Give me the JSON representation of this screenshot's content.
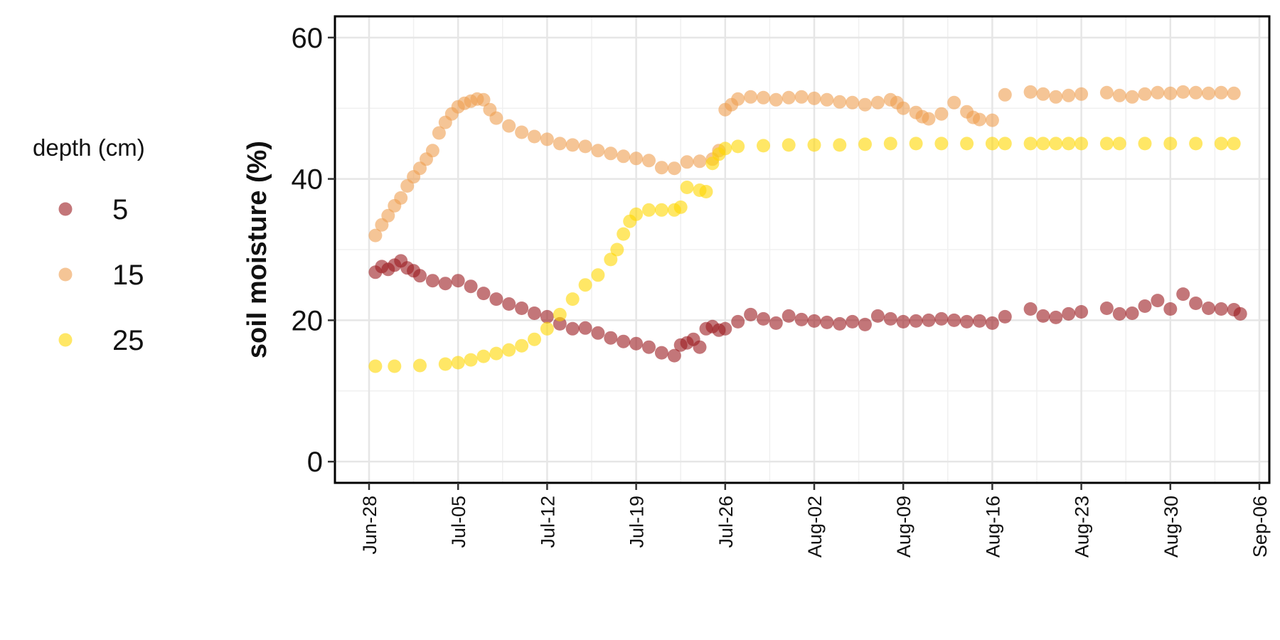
{
  "chart_data": {
    "type": "scatter",
    "title": "",
    "xlabel": "",
    "ylabel": "soil moisture (%)",
    "x_axis": {
      "type": "date",
      "range": [
        "2024-06-28",
        "2024-09-06"
      ],
      "ticks": [
        "2024-06-28",
        "2024-07-05",
        "2024-07-12",
        "2024-07-19",
        "2024-07-26",
        "2024-08-02",
        "2024-08-09",
        "2024-08-16",
        "2024-08-23",
        "2024-08-30",
        "2024-09-06"
      ],
      "tick_labels": [
        "Jun-28",
        "Jul-05",
        "Jul-12",
        "Jul-19",
        "Jul-26",
        "Aug-02",
        "Aug-09",
        "Aug-16",
        "Aug-23",
        "Aug-30",
        "Sep-06"
      ]
    },
    "y_axis": {
      "range": [
        -3,
        63
      ],
      "ticks": [
        0,
        20,
        40,
        60
      ],
      "tick_labels": [
        "0",
        "20",
        "40",
        "60"
      ]
    },
    "grid": true,
    "legend": {
      "title": "depth (cm)",
      "placement": "left"
    },
    "series": [
      {
        "name": "5",
        "color": "#9B1B20",
        "points": [
          [
            "2024-06-28T12:00",
            26.8
          ],
          [
            "2024-06-29T00:00",
            27.6
          ],
          [
            "2024-06-29T12:00",
            27.2
          ],
          [
            "2024-06-30T00:00",
            27.8
          ],
          [
            "2024-06-30T12:00",
            28.4
          ],
          [
            "2024-07-01T00:00",
            27.4
          ],
          [
            "2024-07-01T12:00",
            27.0
          ],
          [
            "2024-07-02T00:00",
            26.3
          ],
          [
            "2024-07-03T00:00",
            25.6
          ],
          [
            "2024-07-04T00:00",
            25.2
          ],
          [
            "2024-07-05T00:00",
            25.6
          ],
          [
            "2024-07-06T00:00",
            24.8
          ],
          [
            "2024-07-07T00:00",
            23.8
          ],
          [
            "2024-07-08T00:00",
            23.0
          ],
          [
            "2024-07-09T00:00",
            22.3
          ],
          [
            "2024-07-10T00:00",
            21.7
          ],
          [
            "2024-07-11T00:00",
            21.0
          ],
          [
            "2024-07-12T00:00",
            20.5
          ],
          [
            "2024-07-13T00:00",
            19.5
          ],
          [
            "2024-07-14T00:00",
            18.8
          ],
          [
            "2024-07-15T00:00",
            18.9
          ],
          [
            "2024-07-16T00:00",
            18.2
          ],
          [
            "2024-07-17T00:00",
            17.5
          ],
          [
            "2024-07-18T00:00",
            17.0
          ],
          [
            "2024-07-19T00:00",
            16.7
          ],
          [
            "2024-07-20T00:00",
            16.2
          ],
          [
            "2024-07-21T00:00",
            15.4
          ],
          [
            "2024-07-22T00:00",
            15.0
          ],
          [
            "2024-07-22T12:00",
            16.5
          ],
          [
            "2024-07-23T00:00",
            16.8
          ],
          [
            "2024-07-23T12:00",
            17.3
          ],
          [
            "2024-07-24T00:00",
            16.2
          ],
          [
            "2024-07-24T12:00",
            18.8
          ],
          [
            "2024-07-25T00:00",
            19.1
          ],
          [
            "2024-07-25T12:00",
            18.6
          ],
          [
            "2024-07-26T00:00",
            18.8
          ],
          [
            "2024-07-27T00:00",
            19.8
          ],
          [
            "2024-07-28T00:00",
            20.8
          ],
          [
            "2024-07-29T00:00",
            20.2
          ],
          [
            "2024-07-30T00:00",
            19.6
          ],
          [
            "2024-07-31T00:00",
            20.6
          ],
          [
            "2024-08-01T00:00",
            20.1
          ],
          [
            "2024-08-02T00:00",
            19.9
          ],
          [
            "2024-08-03T00:00",
            19.7
          ],
          [
            "2024-08-04T00:00",
            19.5
          ],
          [
            "2024-08-05T00:00",
            19.8
          ],
          [
            "2024-08-06T00:00",
            19.4
          ],
          [
            "2024-08-07T00:00",
            20.6
          ],
          [
            "2024-08-08T00:00",
            20.2
          ],
          [
            "2024-08-09T00:00",
            19.8
          ],
          [
            "2024-08-10T00:00",
            19.9
          ],
          [
            "2024-08-11T00:00",
            20.0
          ],
          [
            "2024-08-12T00:00",
            20.2
          ],
          [
            "2024-08-13T00:00",
            20.0
          ],
          [
            "2024-08-14T00:00",
            19.8
          ],
          [
            "2024-08-15T00:00",
            19.9
          ],
          [
            "2024-08-16T00:00",
            19.6
          ],
          [
            "2024-08-17T00:00",
            20.5
          ],
          [
            "2024-08-19T00:00",
            21.6
          ],
          [
            "2024-08-20T00:00",
            20.6
          ],
          [
            "2024-08-21T00:00",
            20.4
          ],
          [
            "2024-08-22T00:00",
            20.9
          ],
          [
            "2024-08-23T00:00",
            21.2
          ],
          [
            "2024-08-25T00:00",
            21.7
          ],
          [
            "2024-08-26T00:00",
            20.9
          ],
          [
            "2024-08-27T00:00",
            21.0
          ],
          [
            "2024-08-28T00:00",
            22.0
          ],
          [
            "2024-08-29T00:00",
            22.8
          ],
          [
            "2024-08-30T00:00",
            21.6
          ],
          [
            "2024-08-31T00:00",
            23.7
          ],
          [
            "2024-09-01T00:00",
            22.4
          ],
          [
            "2024-09-02T00:00",
            21.7
          ],
          [
            "2024-09-03T00:00",
            21.6
          ],
          [
            "2024-09-04T00:00",
            21.5
          ],
          [
            "2024-09-04T12:00",
            20.9
          ]
        ]
      },
      {
        "name": "15",
        "color": "#EE9E50",
        "points": [
          [
            "2024-06-28T12:00",
            32.0
          ],
          [
            "2024-06-29T00:00",
            33.5
          ],
          [
            "2024-06-29T12:00",
            34.8
          ],
          [
            "2024-06-30T00:00",
            36.2
          ],
          [
            "2024-06-30T12:00",
            37.3
          ],
          [
            "2024-07-01T00:00",
            39.0
          ],
          [
            "2024-07-01T12:00",
            40.3
          ],
          [
            "2024-07-02T00:00",
            41.5
          ],
          [
            "2024-07-02T12:00",
            42.8
          ],
          [
            "2024-07-03T00:00",
            44.0
          ],
          [
            "2024-07-03T12:00",
            46.5
          ],
          [
            "2024-07-04T00:00",
            48.0
          ],
          [
            "2024-07-04T12:00",
            49.2
          ],
          [
            "2024-07-05T00:00",
            50.2
          ],
          [
            "2024-07-05T12:00",
            50.7
          ],
          [
            "2024-07-06T00:00",
            51.0
          ],
          [
            "2024-07-06T12:00",
            51.3
          ],
          [
            "2024-07-07T00:00",
            51.2
          ],
          [
            "2024-07-07T12:00",
            49.8
          ],
          [
            "2024-07-08T00:00",
            48.6
          ],
          [
            "2024-07-09T00:00",
            47.5
          ],
          [
            "2024-07-10T00:00",
            46.6
          ],
          [
            "2024-07-11T00:00",
            46.0
          ],
          [
            "2024-07-12T00:00",
            45.6
          ],
          [
            "2024-07-13T00:00",
            45.0
          ],
          [
            "2024-07-14T00:00",
            44.8
          ],
          [
            "2024-07-15T00:00",
            44.6
          ],
          [
            "2024-07-16T00:00",
            44.0
          ],
          [
            "2024-07-17T00:00",
            43.6
          ],
          [
            "2024-07-18T00:00",
            43.2
          ],
          [
            "2024-07-19T00:00",
            42.9
          ],
          [
            "2024-07-20T00:00",
            42.6
          ],
          [
            "2024-07-21T00:00",
            41.6
          ],
          [
            "2024-07-22T00:00",
            41.5
          ],
          [
            "2024-07-23T00:00",
            42.4
          ],
          [
            "2024-07-24T00:00",
            42.5
          ],
          [
            "2024-07-25T00:00",
            42.8
          ],
          [
            "2024-07-25T12:00",
            44.0
          ],
          [
            "2024-07-26T00:00",
            49.8
          ],
          [
            "2024-07-26T12:00",
            50.5
          ],
          [
            "2024-07-27T00:00",
            51.3
          ],
          [
            "2024-07-28T00:00",
            51.6
          ],
          [
            "2024-07-29T00:00",
            51.5
          ],
          [
            "2024-07-30T00:00",
            51.2
          ],
          [
            "2024-07-31T00:00",
            51.5
          ],
          [
            "2024-08-01T00:00",
            51.6
          ],
          [
            "2024-08-02T00:00",
            51.4
          ],
          [
            "2024-08-03T00:00",
            51.2
          ],
          [
            "2024-08-04T00:00",
            50.9
          ],
          [
            "2024-08-05T00:00",
            50.8
          ],
          [
            "2024-08-06T00:00",
            50.5
          ],
          [
            "2024-08-07T00:00",
            50.8
          ],
          [
            "2024-08-08T00:00",
            51.2
          ],
          [
            "2024-08-08T12:00",
            50.8
          ],
          [
            "2024-08-09T00:00",
            50.0
          ],
          [
            "2024-08-10T00:00",
            49.4
          ],
          [
            "2024-08-10T12:00",
            48.8
          ],
          [
            "2024-08-11T00:00",
            48.5
          ],
          [
            "2024-08-12T00:00",
            49.2
          ],
          [
            "2024-08-13T00:00",
            50.8
          ],
          [
            "2024-08-14T00:00",
            49.5
          ],
          [
            "2024-08-14T12:00",
            48.7
          ],
          [
            "2024-08-15T00:00",
            48.4
          ],
          [
            "2024-08-16T00:00",
            48.3
          ],
          [
            "2024-08-17T00:00",
            51.9
          ],
          [
            "2024-08-19T00:00",
            52.3
          ],
          [
            "2024-08-20T00:00",
            52.0
          ],
          [
            "2024-08-21T00:00",
            51.6
          ],
          [
            "2024-08-22T00:00",
            51.8
          ],
          [
            "2024-08-23T00:00",
            52.0
          ],
          [
            "2024-08-25T00:00",
            52.2
          ],
          [
            "2024-08-26T00:00",
            51.8
          ],
          [
            "2024-08-27T00:00",
            51.6
          ],
          [
            "2024-08-28T00:00",
            52.0
          ],
          [
            "2024-08-29T00:00",
            52.2
          ],
          [
            "2024-08-30T00:00",
            52.1
          ],
          [
            "2024-08-31T00:00",
            52.3
          ],
          [
            "2024-09-01T00:00",
            52.2
          ],
          [
            "2024-09-02T00:00",
            52.1
          ],
          [
            "2024-09-03T00:00",
            52.2
          ],
          [
            "2024-09-04T00:00",
            52.1
          ]
        ]
      },
      {
        "name": "25",
        "color": "#FFD700",
        "points": [
          [
            "2024-06-28T12:00",
            13.5
          ],
          [
            "2024-06-30T00:00",
            13.5
          ],
          [
            "2024-07-02T00:00",
            13.6
          ],
          [
            "2024-07-04T00:00",
            13.8
          ],
          [
            "2024-07-05T00:00",
            14.0
          ],
          [
            "2024-07-06T00:00",
            14.4
          ],
          [
            "2024-07-07T00:00",
            14.9
          ],
          [
            "2024-07-08T00:00",
            15.3
          ],
          [
            "2024-07-09T00:00",
            15.8
          ],
          [
            "2024-07-10T00:00",
            16.4
          ],
          [
            "2024-07-11T00:00",
            17.3
          ],
          [
            "2024-07-12T00:00",
            18.8
          ],
          [
            "2024-07-13T00:00",
            20.8
          ],
          [
            "2024-07-14T00:00",
            23.0
          ],
          [
            "2024-07-15T00:00",
            25.0
          ],
          [
            "2024-07-16T00:00",
            26.4
          ],
          [
            "2024-07-17T00:00",
            28.6
          ],
          [
            "2024-07-17T12:00",
            30.0
          ],
          [
            "2024-07-18T00:00",
            32.2
          ],
          [
            "2024-07-18T12:00",
            34.0
          ],
          [
            "2024-07-19T00:00",
            35.0
          ],
          [
            "2024-07-20T00:00",
            35.6
          ],
          [
            "2024-07-21T00:00",
            35.6
          ],
          [
            "2024-07-22T00:00",
            35.6
          ],
          [
            "2024-07-22T12:00",
            36.0
          ],
          [
            "2024-07-23T00:00",
            38.8
          ],
          [
            "2024-07-24T00:00",
            38.4
          ],
          [
            "2024-07-24T12:00",
            38.2
          ],
          [
            "2024-07-25T00:00",
            42.2
          ],
          [
            "2024-07-25T12:00",
            43.5
          ],
          [
            "2024-07-26T00:00",
            44.3
          ],
          [
            "2024-07-27T00:00",
            44.6
          ],
          [
            "2024-07-29T00:00",
            44.7
          ],
          [
            "2024-07-31T00:00",
            44.8
          ],
          [
            "2024-08-02T00:00",
            44.8
          ],
          [
            "2024-08-04T00:00",
            44.8
          ],
          [
            "2024-08-06T00:00",
            44.9
          ],
          [
            "2024-08-08T00:00",
            45.0
          ],
          [
            "2024-08-10T00:00",
            45.0
          ],
          [
            "2024-08-12T00:00",
            45.0
          ],
          [
            "2024-08-14T00:00",
            45.0
          ],
          [
            "2024-08-16T00:00",
            45.0
          ],
          [
            "2024-08-17T00:00",
            45.0
          ],
          [
            "2024-08-19T00:00",
            45.0
          ],
          [
            "2024-08-20T00:00",
            45.0
          ],
          [
            "2024-08-21T00:00",
            45.0
          ],
          [
            "2024-08-22T00:00",
            45.0
          ],
          [
            "2024-08-23T00:00",
            45.0
          ],
          [
            "2024-08-25T00:00",
            45.0
          ],
          [
            "2024-08-26T00:00",
            45.0
          ],
          [
            "2024-08-28T00:00",
            45.0
          ],
          [
            "2024-08-30T00:00",
            45.0
          ],
          [
            "2024-09-01T00:00",
            45.0
          ],
          [
            "2024-09-03T00:00",
            45.0
          ],
          [
            "2024-09-04T00:00",
            45.0
          ]
        ]
      }
    ]
  }
}
